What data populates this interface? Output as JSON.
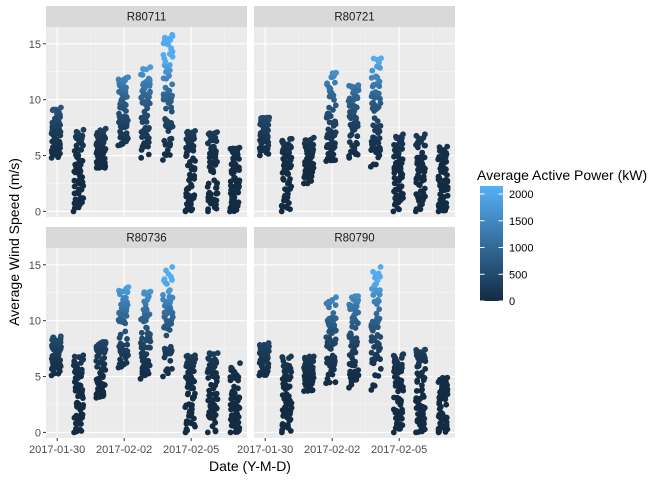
{
  "chart_data": {
    "type": "scatter",
    "xlabel": "Date (Y-M-D)",
    "ylabel": "Average Wind Speed (m/s)",
    "x_range": [
      "2017-01-29 12:00",
      "2017-02-07 12:00"
    ],
    "ylim": [
      -0.5,
      16.5
    ],
    "x_ticks": [
      "2017-01-30",
      "2017-02-02",
      "2017-02-05"
    ],
    "y_ticks": [
      0,
      5,
      10,
      15
    ],
    "grid": true,
    "facet_layout": "2x2",
    "legend": {
      "title": "Average Active Power (kW)",
      "position": "right",
      "breaks": [
        0,
        500,
        1000,
        1500,
        2000
      ],
      "labels": [
        "0",
        "500",
        "1000",
        "1500",
        "2000"
      ],
      "low_color": "#132B43",
      "high_color": "#56B1F7"
    },
    "panels": [
      {
        "label": "R80711",
        "columns": [
          {
            "date": "2017-01-30",
            "min": 4.8,
            "max": 9.3
          },
          {
            "date": "2017-01-31",
            "min": 0.0,
            "max": 7.3
          },
          {
            "date": "2017-02-01",
            "min": 3.9,
            "max": 7.4
          },
          {
            "date": "2017-02-02",
            "min": 5.9,
            "max": 12.0
          },
          {
            "date": "2017-02-03",
            "min": 4.8,
            "max": 12.9
          },
          {
            "date": "2017-02-04",
            "min": 4.6,
            "max": 15.8
          },
          {
            "date": "2017-02-05",
            "min": 0.0,
            "max": 7.2
          },
          {
            "date": "2017-02-06",
            "min": 0.0,
            "max": 7.1
          },
          {
            "date": "2017-02-07",
            "min": 0.0,
            "max": 5.7
          }
        ]
      },
      {
        "label": "R80721",
        "columns": [
          {
            "date": "2017-01-30",
            "min": 5.0,
            "max": 8.4
          },
          {
            "date": "2017-01-31",
            "min": 0.0,
            "max": 6.5
          },
          {
            "date": "2017-02-01",
            "min": 2.5,
            "max": 6.6
          },
          {
            "date": "2017-02-02",
            "min": 4.5,
            "max": 12.4
          },
          {
            "date": "2017-02-03",
            "min": 4.8,
            "max": 11.3
          },
          {
            "date": "2017-02-04",
            "min": 4.0,
            "max": 13.7
          },
          {
            "date": "2017-02-05",
            "min": 0.0,
            "max": 6.9
          },
          {
            "date": "2017-02-06",
            "min": 0.0,
            "max": 6.9
          },
          {
            "date": "2017-02-07",
            "min": 0.0,
            "max": 5.8
          }
        ]
      },
      {
        "label": "R80736",
        "columns": [
          {
            "date": "2017-01-30",
            "min": 5.1,
            "max": 8.6
          },
          {
            "date": "2017-01-31",
            "min": 0.0,
            "max": 6.9
          },
          {
            "date": "2017-02-01",
            "min": 3.1,
            "max": 8.1
          },
          {
            "date": "2017-02-02",
            "min": 5.8,
            "max": 13.0
          },
          {
            "date": "2017-02-03",
            "min": 4.8,
            "max": 12.6
          },
          {
            "date": "2017-02-04",
            "min": 5.0,
            "max": 14.8
          },
          {
            "date": "2017-02-05",
            "min": 0.0,
            "max": 6.9
          },
          {
            "date": "2017-02-06",
            "min": 0.0,
            "max": 7.1
          },
          {
            "date": "2017-02-07",
            "min": 0.0,
            "max": 6.2
          }
        ]
      },
      {
        "label": "R80790",
        "columns": [
          {
            "date": "2017-01-30",
            "min": 5.1,
            "max": 8.0
          },
          {
            "date": "2017-01-31",
            "min": 0.0,
            "max": 6.8
          },
          {
            "date": "2017-02-01",
            "min": 3.7,
            "max": 6.8
          },
          {
            "date": "2017-02-02",
            "min": 4.4,
            "max": 12.1
          },
          {
            "date": "2017-02-03",
            "min": 4.0,
            "max": 12.2
          },
          {
            "date": "2017-02-04",
            "min": 3.8,
            "max": 14.8
          },
          {
            "date": "2017-02-05",
            "min": 0.0,
            "max": 7.0
          },
          {
            "date": "2017-02-06",
            "min": 0.0,
            "max": 7.4
          },
          {
            "date": "2017-02-07",
            "min": 0.0,
            "max": 4.9
          }
        ]
      }
    ]
  }
}
